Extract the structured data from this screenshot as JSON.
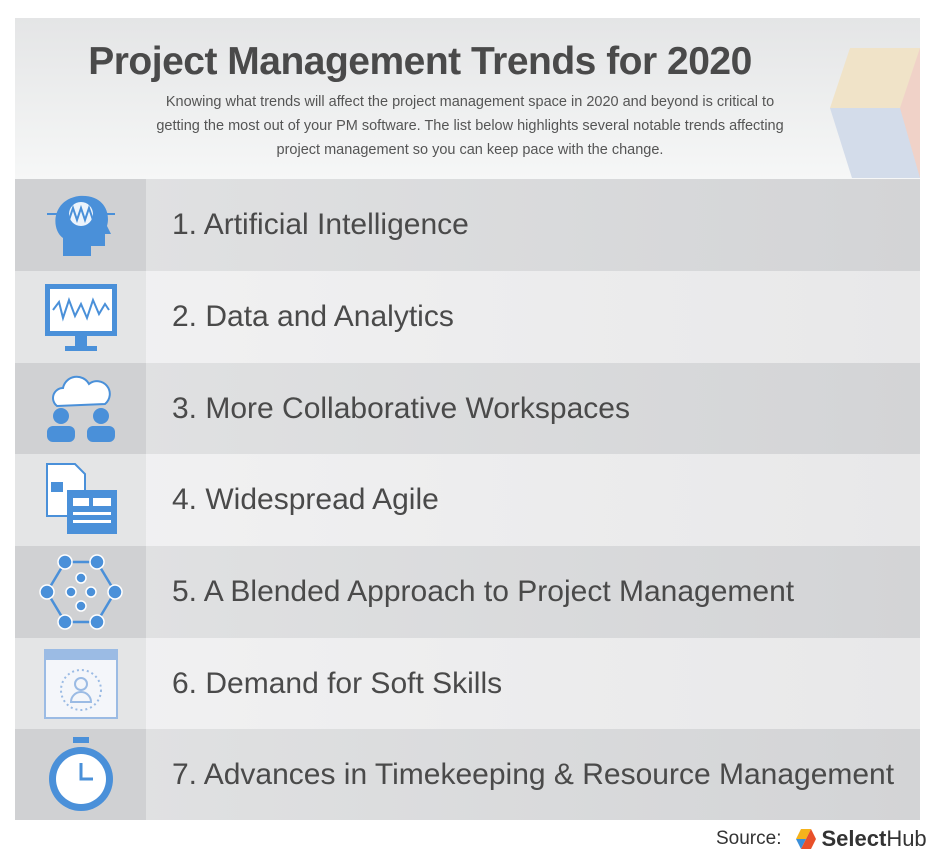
{
  "header": {
    "title": "Project Management Trends for 2020",
    "intro": "Knowing what trends will affect the project management space in 2020 and beyond is critical to getting the most out of your PM software. The list below highlights several notable trends affecting project management so you can keep pace with the change."
  },
  "trends": [
    {
      "label": "1. Artificial Intelligence",
      "icon": "ai-head-icon"
    },
    {
      "label": "2. Data and Analytics",
      "icon": "monitor-chart-icon"
    },
    {
      "label": "3. More Collaborative Workspaces",
      "icon": "cloud-users-icon"
    },
    {
      "label": "4. Widespread Agile",
      "icon": "documents-icon"
    },
    {
      "label": "5. A Blended Approach to Project Management",
      "icon": "network-icon"
    },
    {
      "label": "6. Demand for Soft Skills",
      "icon": "profile-window-icon"
    },
    {
      "label": "7. Advances in Timekeeping & Resource Management",
      "icon": "stopwatch-icon"
    }
  ],
  "footer": {
    "source_label": "Source:",
    "brand_bold": "Select",
    "brand_light": "Hub"
  },
  "colors": {
    "icon_blue": "#4a90d9",
    "text": "#4a4a4a",
    "logo_yellow": "#f5b31c",
    "logo_red": "#e8502a",
    "logo_blue": "#3b8fd9"
  }
}
